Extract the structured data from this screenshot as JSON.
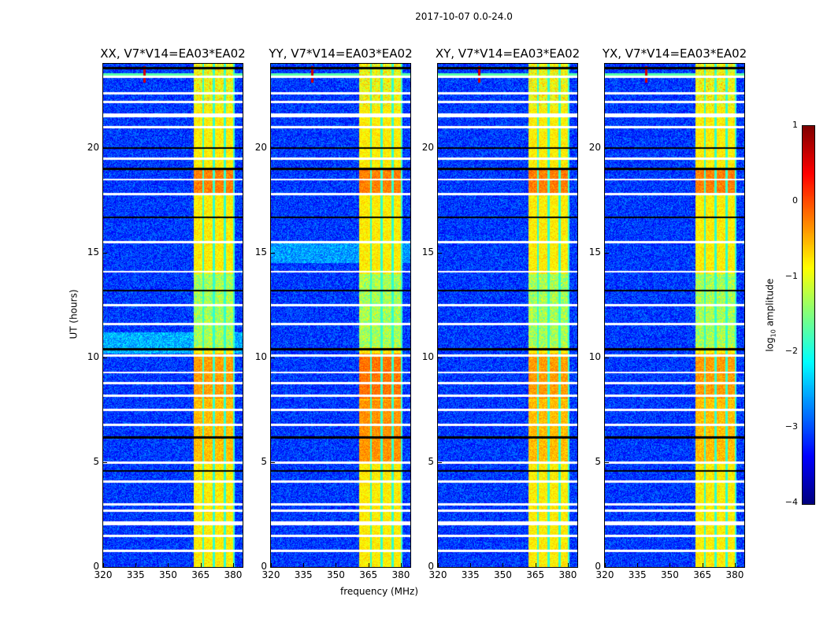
{
  "chart_data": {
    "type": "heatmap",
    "title": "2017-10-07 0.0-24.0",
    "xlabel": "frequency (MHz)",
    "ylabel": "UT (hours)",
    "xlim": [
      320,
      384.4
    ],
    "ylim": [
      0,
      24
    ],
    "xticks": [
      "320",
      "335",
      "350",
      "365",
      "380"
    ],
    "xtick_values": [
      320,
      335,
      350,
      365,
      380
    ],
    "yticks": [
      "0",
      "5",
      "10",
      "15",
      "20"
    ],
    "ytick_values": [
      0,
      5,
      10,
      15,
      20
    ],
    "panels": [
      {
        "title": "XX, V7*V14=EA03*EA02",
        "band_start": 361.5
      },
      {
        "title": "YY, V7*V14=EA03*EA02",
        "band_start": 360.5
      },
      {
        "title": "XY, V7*V14=EA03*EA02",
        "band_start": 361.5
      },
      {
        "title": "YX, V7*V14=EA03*EA02",
        "band_start": 361.5
      }
    ],
    "band": {
      "range_mhz": [
        361.5,
        380.5
      ],
      "gap_channels_mhz": [
        366,
        371,
        376,
        380.5
      ],
      "level_log10": -0.8
    },
    "background_level_log10": -3.1,
    "rfi_spike": {
      "freq_mhz": 339,
      "ut_hours": 23.5
    },
    "flagged_white_ut": [
      23.4,
      22.6,
      22.2,
      21.6,
      21.5,
      21.0,
      19.5,
      18.5,
      17.8,
      15.5,
      14.1,
      12.5,
      11.6,
      10.1,
      9.3,
      8.8,
      8.2,
      7.5,
      6.8,
      5.0,
      4.1,
      3.0,
      2.7,
      2.15,
      2.05,
      1.5,
      0.8
    ],
    "flagged_black_ut": [
      23.8,
      20.0,
      19.0,
      16.7,
      13.2,
      10.4,
      6.2,
      4.6
    ],
    "colorbar": {
      "label": "log10 amplitude",
      "label_main": "log",
      "label_sub": "10",
      "label_rest": " amplitude",
      "range": [
        -4,
        1
      ],
      "ticks": [
        "1",
        "0",
        "−1",
        "−2",
        "−3",
        "−4"
      ],
      "tick_values": [
        1,
        0,
        -1,
        -2,
        -3,
        -4
      ],
      "colormap": "jet"
    }
  }
}
